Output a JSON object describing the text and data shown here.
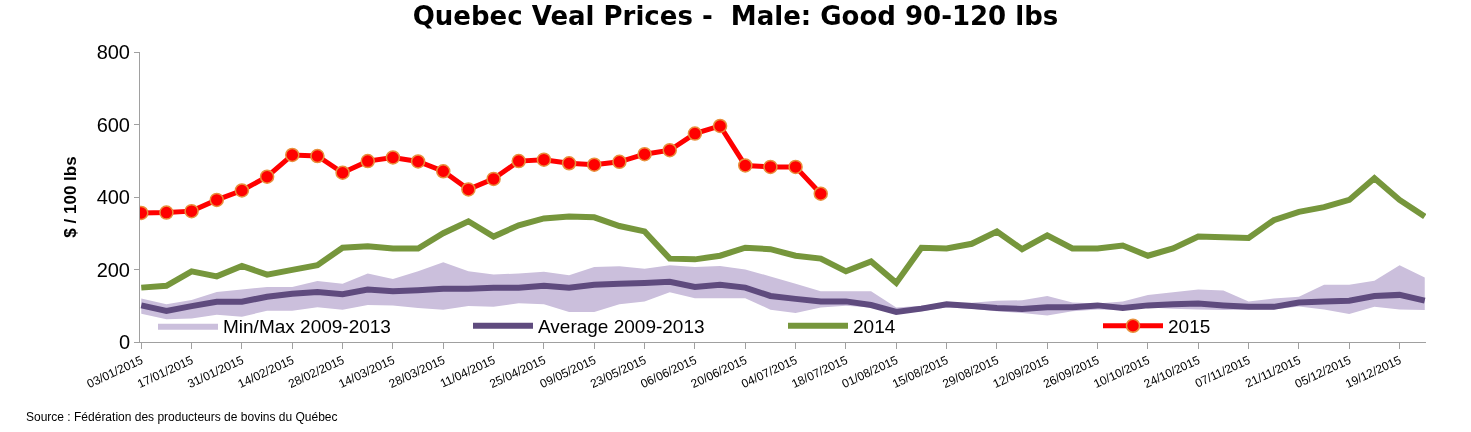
{
  "chart_data": {
    "type": "line",
    "title": "Quebec Veal Prices -  Male: Good 90-120 lbs",
    "ylabel": "$ / 100 lbs",
    "categories": [
      "03/01/2015",
      null,
      "17/01/2015",
      null,
      "31/01/2015",
      null,
      "14/02/2015",
      null,
      "28/02/2015",
      null,
      "14/03/2015",
      null,
      "28/03/2015",
      null,
      "11/04/2015",
      null,
      "25/04/2015",
      null,
      "09/05/2015",
      null,
      "23/05/2015",
      null,
      "06/06/2015",
      null,
      "20/06/2015",
      null,
      "04/07/2015",
      null,
      "18/07/2015",
      null,
      "01/08/2015",
      null,
      "15/08/2015",
      null,
      "29/08/2015",
      null,
      "12/09/2015",
      null,
      "26/09/2015",
      null,
      "10/10/2015",
      null,
      "24/10/2015",
      null,
      "07/11/2015",
      null,
      "21/11/2015",
      null,
      "05/12/2015",
      null,
      "19/12/2015",
      null
    ],
    "ylim": [
      0,
      800
    ],
    "yticks": [
      0,
      200,
      400,
      600,
      800
    ],
    "legend": "bottom",
    "series": [
      {
        "name": "Min/Max 2009-2013",
        "type": "line",
        "color": "#cbbfdc",
        "values": [
          null,
          null,
          null,
          null,
          null,
          null,
          null,
          null,
          null,
          null,
          null,
          null,
          null,
          null,
          null,
          null,
          null,
          null,
          null,
          null,
          null,
          null,
          null,
          null,
          null,
          null,
          null,
          null,
          null,
          null,
          null,
          null,
          null,
          null,
          null,
          null,
          null,
          null,
          null,
          null,
          null,
          null,
          null,
          null,
          null,
          null,
          null,
          null,
          null,
          null,
          null,
          null
        ],
        "lower": [
          78,
          63,
          65,
          75,
          70,
          86,
          86,
          96,
          89,
          102,
          101,
          94,
          89,
          99,
          97,
          107,
          104,
          83,
          83,
          104,
          112,
          137,
          121,
          121,
          121,
          89,
          80,
          95,
          100,
          95,
          80,
          85,
          95,
          92,
          85,
          80,
          73,
          85,
          90,
          88,
          95,
          92,
          90,
          88,
          90,
          90,
          98,
          90,
          77,
          97,
          90,
          88
        ],
        "upper": [
          120,
          104,
          116,
          138,
          145,
          152,
          152,
          168,
          161,
          189,
          174,
          195,
          220,
          195,
          186,
          189,
          194,
          184,
          207,
          209,
          202,
          212,
          207,
          210,
          200,
          181,
          161,
          140,
          140,
          140,
          95,
          100,
          108,
          108,
          114,
          115,
          127,
          109,
          106,
          112,
          130,
          137,
          145,
          142,
          112,
          120,
          125,
          158,
          158,
          169,
          212,
          178
        ]
      },
      {
        "name": "Average 2009-2013",
        "type": "line",
        "color": "#5f4b7e",
        "marker": "none",
        "values": [
          101,
          86,
          99,
          111,
          111,
          125,
          133,
          138,
          132,
          145,
          140,
          143,
          147,
          147,
          150,
          150,
          155,
          150,
          158,
          161,
          163,
          166,
          152,
          158,
          150,
          127,
          119,
          112,
          112,
          102,
          83,
          92,
          104,
          99,
          94,
          91,
          96,
          96,
          101,
          94,
          101,
          104,
          106,
          101,
          97,
          97,
          109,
          112,
          114,
          127,
          130,
          114
        ]
      },
      {
        "name": "2014",
        "type": "line",
        "color": "#76963c",
        "marker": "none",
        "values": [
          150,
          155,
          195,
          181,
          210,
          186,
          199,
          212,
          260,
          264,
          258,
          258,
          300,
          333,
          291,
          322,
          341,
          346,
          344,
          320,
          305,
          230,
          228,
          238,
          260,
          256,
          238,
          230,
          195,
          222,
          163,
          260,
          258,
          271,
          305,
          256,
          294,
          258,
          258,
          266,
          238,
          258,
          291,
          289,
          287,
          336,
          359,
          372,
          392,
          452,
          392,
          346
        ]
      },
      {
        "name": "2015",
        "type": "line",
        "color": "#ff0000",
        "marker": "circle",
        "values": [
          356,
          357,
          361,
          392,
          418,
          456,
          516,
          513,
          467,
          499,
          509,
          498,
          471,
          421,
          450,
          499,
          503,
          493,
          489,
          497,
          518,
          529,
          575,
          596,
          487,
          483,
          483,
          409,
          null,
          null,
          null,
          null,
          null,
          null,
          null,
          null,
          null,
          null,
          null,
          null,
          null,
          null,
          null,
          null,
          null,
          null,
          null,
          null,
          null,
          null,
          null,
          null
        ]
      }
    ],
    "annotations": [
      "Source : Fédération des producteurs de bovins du Québec"
    ]
  }
}
